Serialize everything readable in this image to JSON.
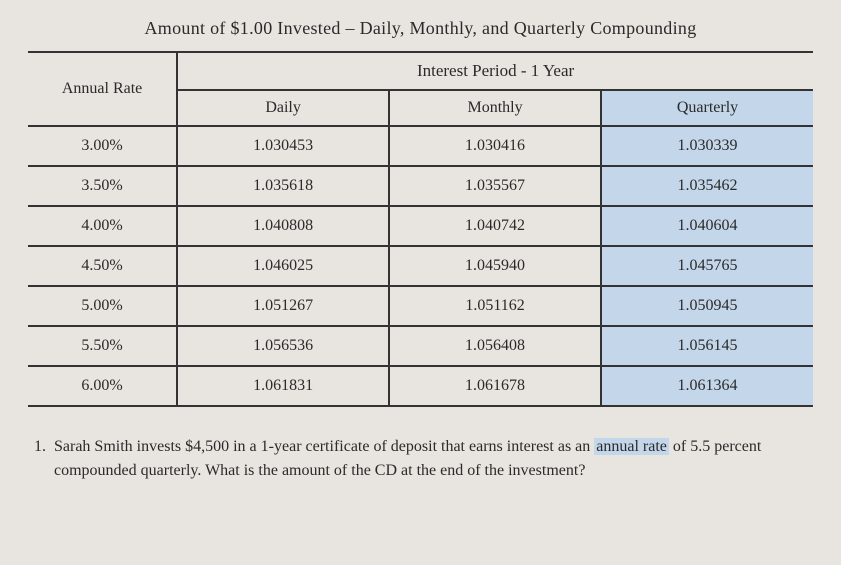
{
  "title": "Amount of $1.00 Invested – Daily, Monthly, and Quarterly Compounding",
  "table": {
    "rate_header": "Annual Rate",
    "period_header": "Interest Period - 1 Year",
    "columns": [
      "Daily",
      "Monthly",
      "Quarterly"
    ],
    "rows": [
      {
        "rate": "3.00%",
        "daily": "1.030453",
        "monthly": "1.030416",
        "quarterly": "1.030339"
      },
      {
        "rate": "3.50%",
        "daily": "1.035618",
        "monthly": "1.035567",
        "quarterly": "1.035462"
      },
      {
        "rate": "4.00%",
        "daily": "1.040808",
        "monthly": "1.040742",
        "quarterly": "1.040604"
      },
      {
        "rate": "4.50%",
        "daily": "1.046025",
        "monthly": "1.045940",
        "quarterly": "1.045765"
      },
      {
        "rate": "5.00%",
        "daily": "1.051267",
        "monthly": "1.051162",
        "quarterly": "1.050945"
      },
      {
        "rate": "5.50%",
        "daily": "1.056536",
        "monthly": "1.056408",
        "quarterly": "1.056145"
      },
      {
        "rate": "6.00%",
        "daily": "1.061831",
        "monthly": "1.061678",
        "quarterly": "1.061364"
      }
    ],
    "highlight_column": "quarterly",
    "colors": {
      "background": "#e8e4df",
      "border": "#333333",
      "text": "#2a2a2a",
      "highlight": "rgba(130,190,255,0.35)"
    }
  },
  "question": {
    "number": "1.",
    "text_before": "Sarah Smith invests $4,500 in a 1-year certificate of deposit that earns interest as an ",
    "highlight": "annual rate",
    "text_after": " of 5.5 percent compounded quarterly. What is the amount of the CD at the end of the investment?"
  }
}
